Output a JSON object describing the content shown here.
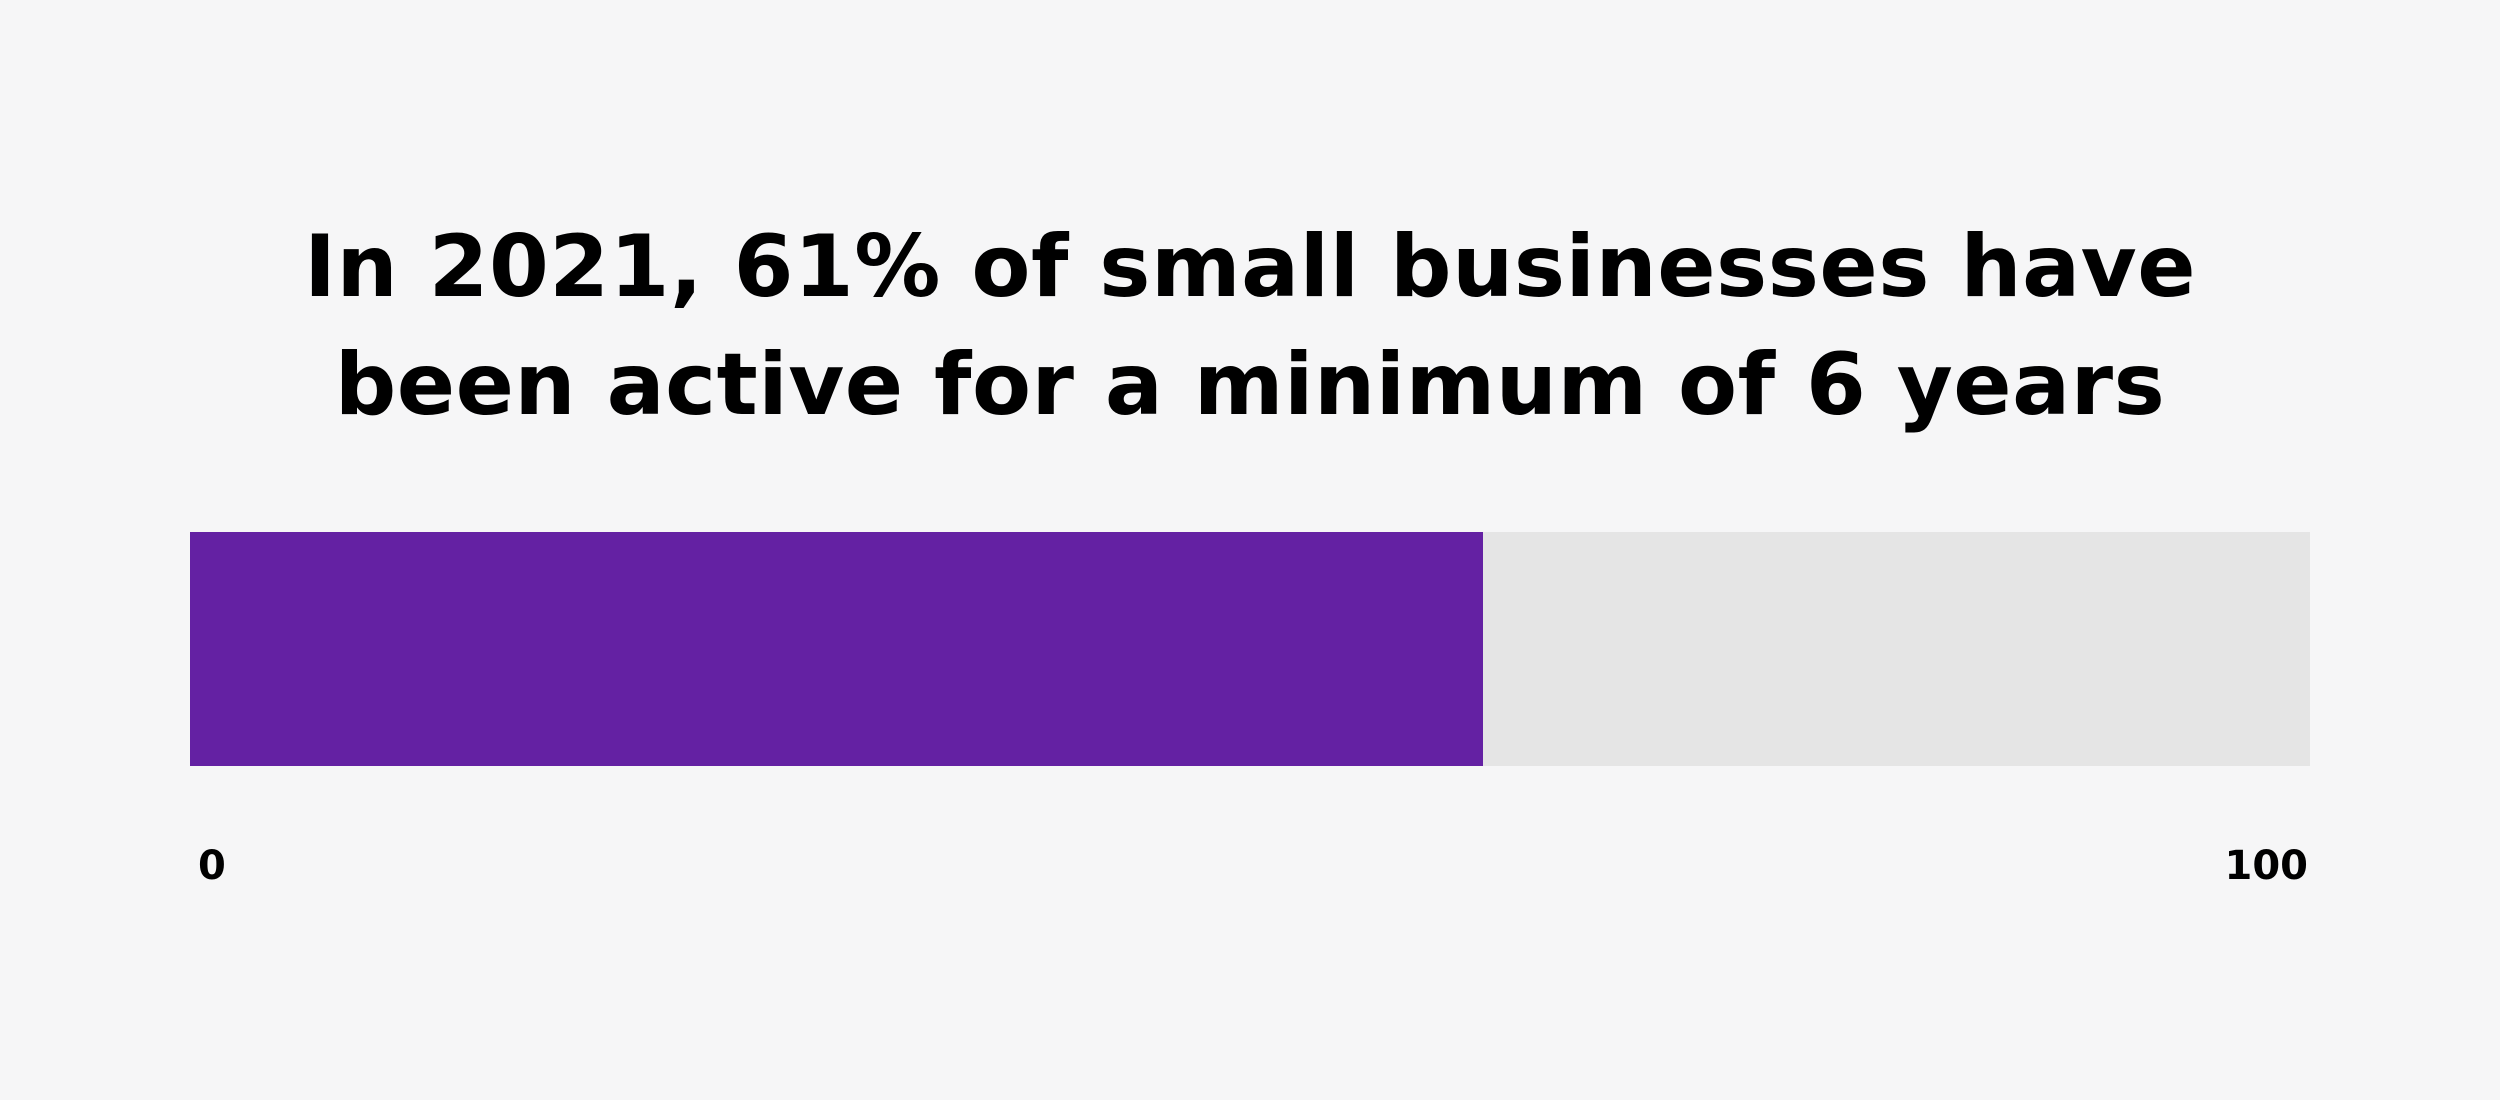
{
  "chart_data": {
    "type": "bar",
    "orientation": "horizontal",
    "title_lines": [
      "In 2021, 61% of small businesses have",
      "been active for a minimum of 6 years"
    ],
    "values": [
      61
    ],
    "xlim": [
      0,
      100
    ],
    "tick_labels": [
      "0",
      "100"
    ],
    "grid": false,
    "legend": "none",
    "colors": {
      "fill": "#6421a3",
      "track": "#e5e5e5",
      "background": "#f6f6f7",
      "text": "#000000"
    }
  }
}
